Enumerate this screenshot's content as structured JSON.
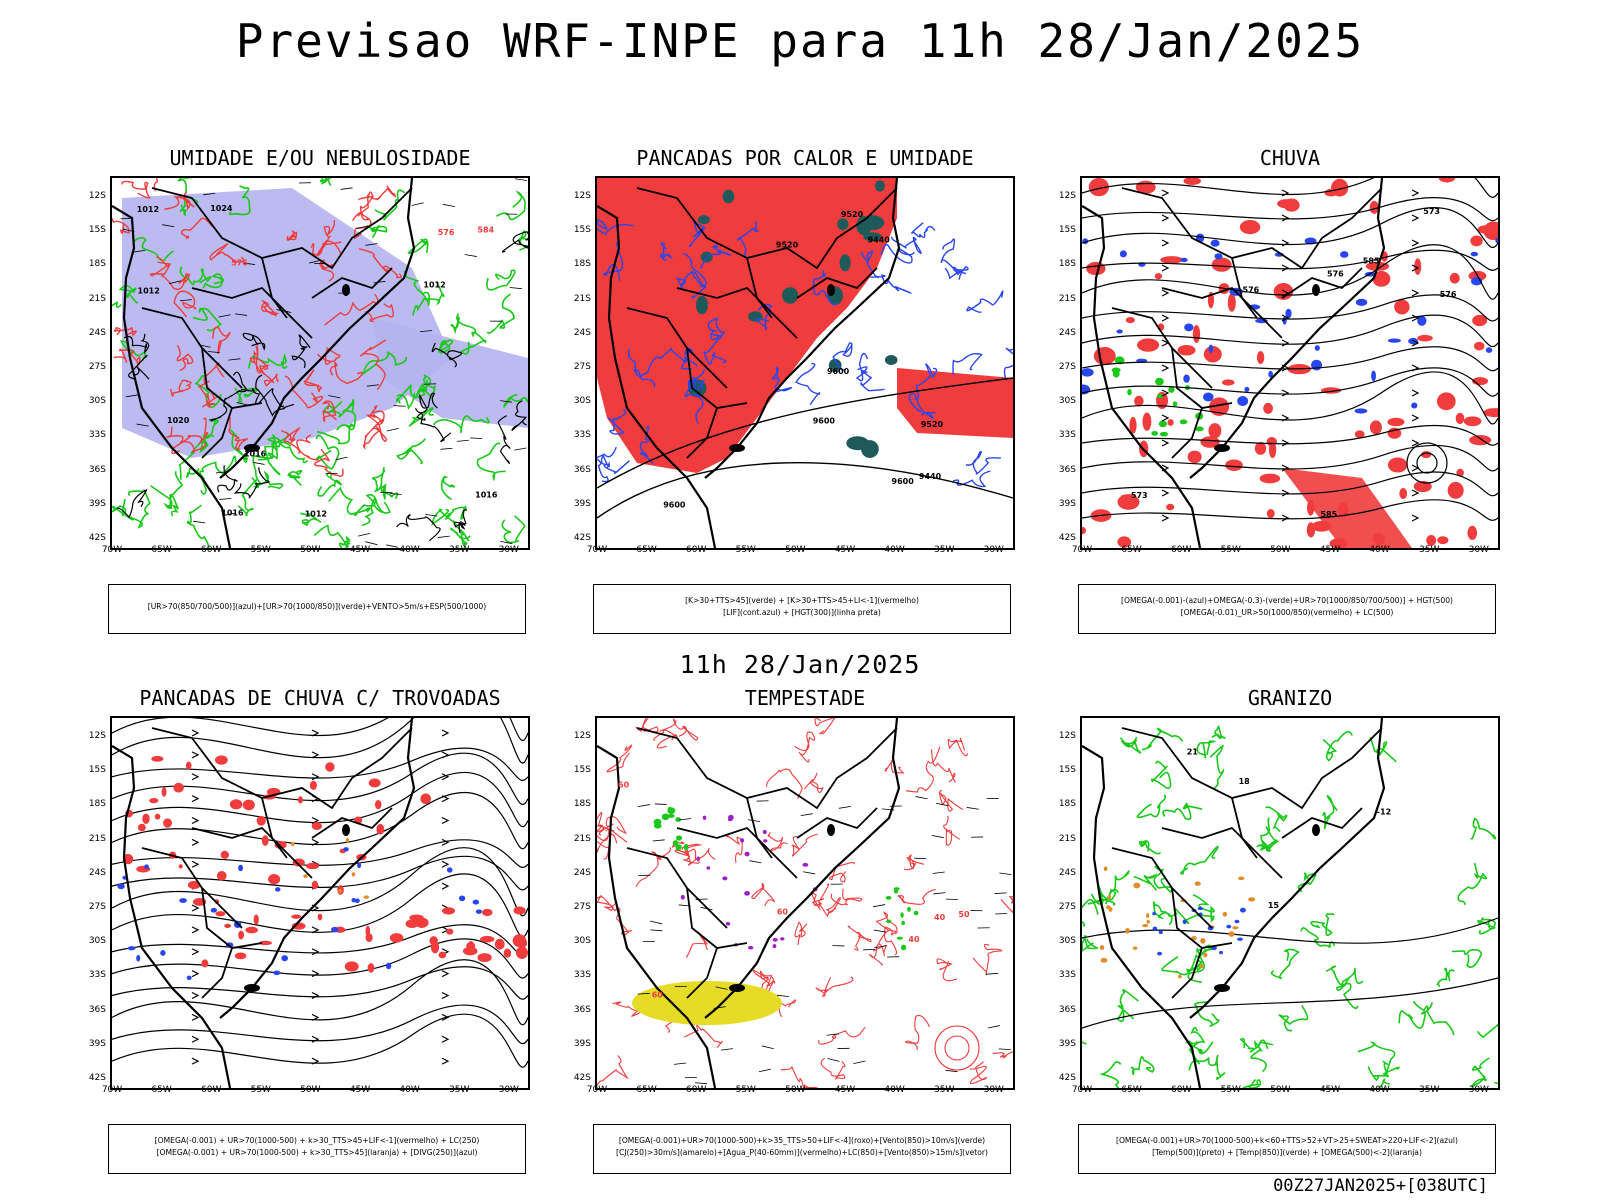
{
  "title": "Previsao WRF-INPE  para 11h 28/Jan/2025",
  "mid_title": "11h 28/Jan/2025",
  "footer": "00Z27JAN2025+[038UTC]",
  "lat_ticks": [
    "12S",
    "15S",
    "18S",
    "21S",
    "24S",
    "27S",
    "30S",
    "33S",
    "36S",
    "39S",
    "42S"
  ],
  "lon_ticks": [
    "70W",
    "65W",
    "60W",
    "55W",
    "50W",
    "45W",
    "40W",
    "35W",
    "30W"
  ],
  "panels": [
    {
      "title": "UMIDADE E/OU NEBULOSIDADE",
      "legend": [
        "[UR>70(850/700/500)](azul)+[UR>70(1000/850)](verde)+VENTO>5m/s+ESP(500/1000)"
      ],
      "contour_labels": [
        "1012",
        "1012",
        "1012",
        "1016",
        "1012",
        "1016",
        "1016",
        "1020",
        "1024",
        "576",
        "576",
        "584"
      ]
    },
    {
      "title": "PANCADAS POR CALOR E UMIDADE",
      "legend": [
        "[K>30+TTS>45](verde) + [K>30+TTS>45+LI<-1](vermelho)",
        "[LIF](cont.azul) + [HGT(300)](linha preta)"
      ],
      "contour_labels": [
        "9600",
        "9520",
        "9600",
        "9600",
        "9520",
        "9520",
        "9440",
        "9440",
        "9600"
      ]
    },
    {
      "title": "CHUVA",
      "legend": [
        "[OMEGA(-0.001)-(azul)+OMEGA(-0.3)-(verde)+UR>70(1000/850/700/500)] + HGT(500)",
        "[OMEGA(-0.01)_UR>50(1000/850)(vermelho) + LC(500)"
      ],
      "contour_labels": [
        "585",
        "576",
        "576",
        "573",
        "573",
        "576",
        "585"
      ]
    },
    {
      "title": "PANCADAS DE CHUVA C/ TROVOADAS",
      "legend": [
        "[OMEGA(-0.001) + UR>70(1000-500) + k>30_TTS>45+LIF<-1](vermelho) + LC(250)",
        "[OMEGA(-0.001) + UR>70(1000-500) + k>30_TTS>45](laranja) + [DIVG(250)](azul)"
      ],
      "contour_labels": []
    },
    {
      "title": "TEMPESTADE",
      "legend": [
        "[OMEGA(-0.001)+UR>70(1000-500)+k>35_TTS>50+LIF<-4](roxo)+[Vento(850)>10m/s](verde)",
        "[CJ(250)>30m/s](amarelo)+[Agua_P(40-60mm)](vermelho)+LC(850)+[Vento(850)>15m/s](vetor)"
      ],
      "contour_labels": [
        "60",
        "60",
        "40",
        "60",
        "50",
        "40"
      ]
    },
    {
      "title": "GRANIZO",
      "legend": [
        "[OMEGA(-0.001)+UR>70(1000-500)+k<60+TTS>52+VT>25+SWEAT>220+LIF<-2](azul)",
        "[Temp(500)](preto) + [Temp(850)](verde) + [OMEGA(500)<-2](laranja)"
      ],
      "contour_labels": [
        "-12",
        "15",
        "18",
        "21"
      ]
    }
  ],
  "colors": {
    "red": "#f03c3c",
    "green": "#19c819",
    "blue": "#2846f0",
    "lavender": "#b4b4f0",
    "darkteal": "#1e5a5a",
    "yellow": "#e6dc28",
    "purple": "#a020c8",
    "orange": "#e08c28"
  }
}
